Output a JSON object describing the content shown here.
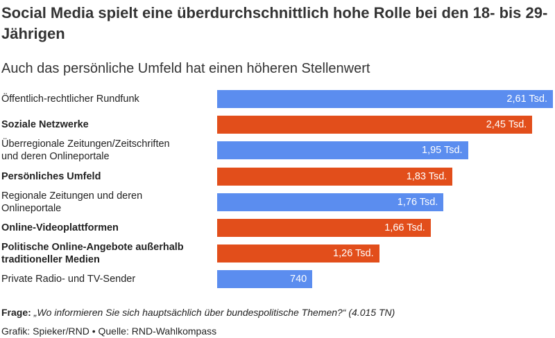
{
  "chart_data": {
    "type": "bar",
    "orientation": "horizontal",
    "title": "Social Media spielt eine überdurchschnittlich hohe Rolle bei den 18- bis 29-Jährigen",
    "subtitle": "Auch das persönliche Umfeld hat einen höheren Stellenwert",
    "categories": [
      "Öffentlich-rechtlicher Rundfunk",
      "Soziale Netzwerke",
      "Überregionale Zeitungen/Zeitschriften\nund deren Onlineportale",
      "Persönliches Umfeld",
      "Regionale Zeitungen und deren\nOnlineportale",
      "Online-Videoplattformen",
      "Politische Online-Angebote außerhalb\ntraditioneller Medien",
      "Private Radio- und TV-Sender"
    ],
    "category_bold": [
      false,
      true,
      false,
      true,
      false,
      true,
      true,
      false
    ],
    "values": [
      2610,
      2450,
      1950,
      1830,
      1760,
      1660,
      1260,
      740
    ],
    "value_labels": [
      "2,61 Tsd.",
      "2,45 Tsd.",
      "1,95 Tsd.",
      "1,83 Tsd.",
      "1,76 Tsd.",
      "1,66 Tsd.",
      "1,26 Tsd.",
      "740"
    ],
    "colors": [
      "#5b8def",
      "#e24e1b",
      "#5b8def",
      "#e24e1b",
      "#5b8def",
      "#e24e1b",
      "#e24e1b",
      "#5b8def"
    ],
    "question_label": "Frage:",
    "question": "„Wo informieren Sie sich hauptsächlich über bundespolitische Themen?“ (4.015 TN)",
    "source": "Grafik: Spieker/RND • Quelle: RND-Wahlkompass"
  }
}
